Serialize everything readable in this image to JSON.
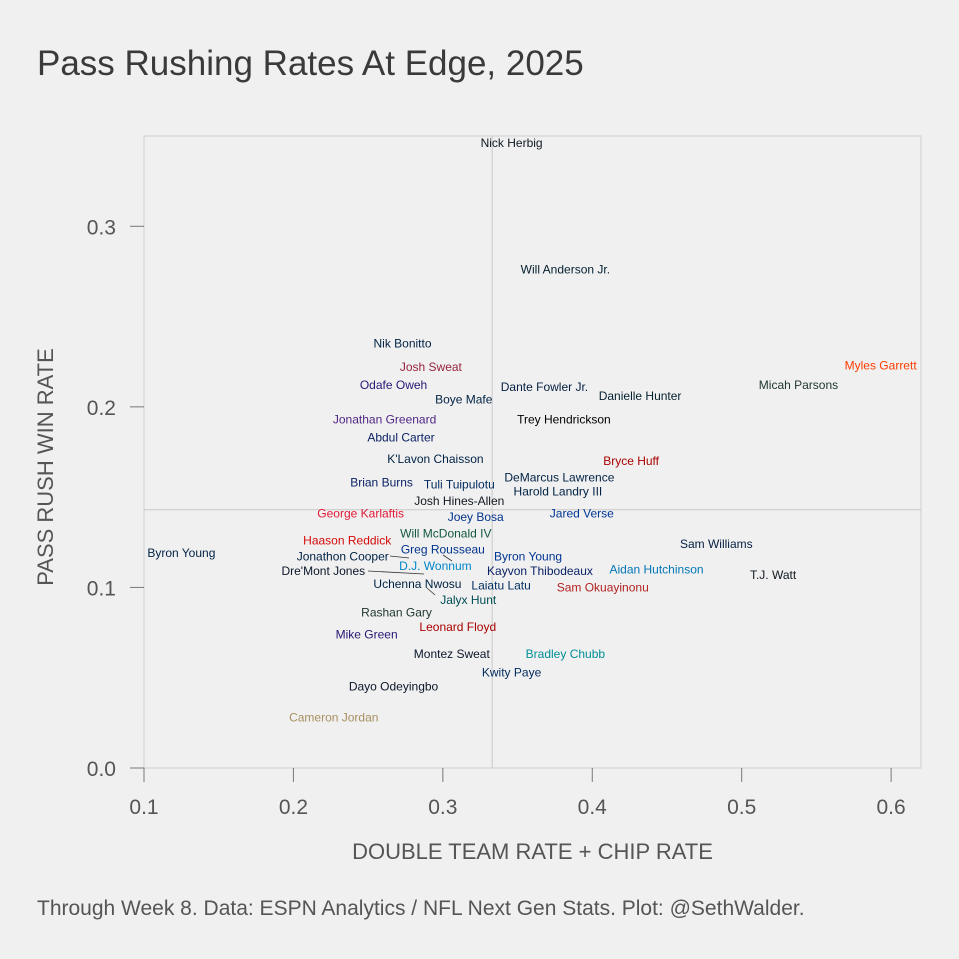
{
  "title": "Pass Rushing Rates At Edge, 2025",
  "caption": "Through Week 8. Data: ESPN Analytics / NFL Next Gen Stats. Plot: @SethWalder.",
  "chart_data": {
    "type": "scatter",
    "title": "Pass Rushing Rates At Edge, 2025",
    "xlabel": "DOUBLE TEAM RATE + CHIP RATE",
    "ylabel": "PASS RUSH WIN RATE",
    "xlim": [
      0.1,
      0.62
    ],
    "ylim": [
      0,
      0.35
    ],
    "xticks": [
      0.1,
      0.2,
      0.3,
      0.4,
      0.5,
      0.6
    ],
    "xtick_labels": [
      "0.1",
      "0.2",
      "0.3",
      "0.4",
      "0.5",
      "0.6"
    ],
    "yticks": [
      0,
      0.1,
      0.2,
      0.3
    ],
    "ytick_labels": [
      "0.0",
      "0.1",
      "0.2",
      "0.3"
    ],
    "reference_lines": {
      "x": 0.333,
      "y": 0.143
    },
    "grid": false,
    "points": [
      {
        "name": "Nick Herbig",
        "x": 0.346,
        "y": 0.346,
        "color": "#101820"
      },
      {
        "name": "Will Anderson Jr.",
        "x": 0.382,
        "y": 0.276,
        "color": "#03202f"
      },
      {
        "name": "Nik Bonitto",
        "x": 0.273,
        "y": 0.235,
        "color": "#002244"
      },
      {
        "name": "Josh Sweat",
        "x": 0.292,
        "y": 0.222,
        "color": "#97233f"
      },
      {
        "name": "Odafe Oweh",
        "x": 0.267,
        "y": 0.212,
        "color": "#241773"
      },
      {
        "name": "Boye Mafe",
        "x": 0.314,
        "y": 0.204,
        "color": "#002244"
      },
      {
        "name": "Jonathan Greenard",
        "x": 0.261,
        "y": 0.193,
        "color": "#4f2683"
      },
      {
        "name": "Abdul Carter",
        "x": 0.272,
        "y": 0.183,
        "color": "#0b2265"
      },
      {
        "name": "K'Lavon Chaisson",
        "x": 0.295,
        "y": 0.171,
        "color": "#002244"
      },
      {
        "name": "Brian Burns",
        "x": 0.259,
        "y": 0.158,
        "color": "#0b2265"
      },
      {
        "name": "Tuli Tuipulotu",
        "x": 0.311,
        "y": 0.157,
        "color": "#002a5e"
      },
      {
        "name": "Josh Hines-Allen",
        "x": 0.311,
        "y": 0.148,
        "color": "#101820"
      },
      {
        "name": "George Karlaftis",
        "x": 0.245,
        "y": 0.141,
        "color": "#e31837"
      },
      {
        "name": "Joey Bosa",
        "x": 0.322,
        "y": 0.139,
        "color": "#00338d"
      },
      {
        "name": "Will McDonald IV",
        "x": 0.302,
        "y": 0.13,
        "color": "#125740"
      },
      {
        "name": "Haason Reddick",
        "x": 0.236,
        "y": 0.126,
        "color": "#d50a0a"
      },
      {
        "name": "Jonathon Cooper",
        "x": 0.233,
        "y": 0.117,
        "color": "#002244"
      },
      {
        "name": "Greg Rousseau",
        "x": 0.3,
        "y": 0.121,
        "color": "#00338d"
      },
      {
        "name": "D.J. Wonnum",
        "x": 0.295,
        "y": 0.112,
        "color": "#0085ca"
      },
      {
        "name": "Dre'Mont Jones",
        "x": 0.22,
        "y": 0.109,
        "color": "#0b162a"
      },
      {
        "name": "Uchenna Nwosu",
        "x": 0.283,
        "y": 0.102,
        "color": "#002244"
      },
      {
        "name": "Jalyx Hunt",
        "x": 0.317,
        "y": 0.093,
        "color": "#004c54"
      },
      {
        "name": "Rashan Gary",
        "x": 0.269,
        "y": 0.086,
        "color": "#203731"
      },
      {
        "name": "Mike Green",
        "x": 0.249,
        "y": 0.074,
        "color": "#241773"
      },
      {
        "name": "Leonard Floyd",
        "x": 0.31,
        "y": 0.078,
        "color": "#aa0000"
      },
      {
        "name": "Montez Sweat",
        "x": 0.306,
        "y": 0.063,
        "color": "#0b162a"
      },
      {
        "name": "Bradley Chubb",
        "x": 0.382,
        "y": 0.063,
        "color": "#008e97"
      },
      {
        "name": "Kwity Paye",
        "x": 0.346,
        "y": 0.053,
        "color": "#002c5f"
      },
      {
        "name": "Dayo Odeyingbo",
        "x": 0.267,
        "y": 0.045,
        "color": "#0b162a"
      },
      {
        "name": "Cameron Jordan",
        "x": 0.227,
        "y": 0.028,
        "color": "#a89060"
      },
      {
        "name": "Dante Fowler Jr.",
        "x": 0.368,
        "y": 0.211,
        "color": "#041e42"
      },
      {
        "name": "Danielle Hunter",
        "x": 0.432,
        "y": 0.206,
        "color": "#03202f"
      },
      {
        "name": "Trey Hendrickson",
        "x": 0.381,
        "y": 0.193,
        "color": "#000000"
      },
      {
        "name": "Bryce Huff",
        "x": 0.426,
        "y": 0.17,
        "color": "#aa0000"
      },
      {
        "name": "DeMarcus Lawrence",
        "x": 0.378,
        "y": 0.161,
        "color": "#002244"
      },
      {
        "name": "Harold Landry III",
        "x": 0.377,
        "y": 0.153,
        "color": "#002244"
      },
      {
        "name": "Jared Verse",
        "x": 0.393,
        "y": 0.141,
        "color": "#003594"
      },
      {
        "name": "Byron Young",
        "x": 0.357,
        "y": 0.117,
        "color": "#003594"
      },
      {
        "name": "Kayvon Thibodeaux",
        "x": 0.365,
        "y": 0.109,
        "color": "#0b2265"
      },
      {
        "name": "Laiatu Latu",
        "x": 0.339,
        "y": 0.101,
        "color": "#002c5f"
      },
      {
        "name": "Sam Okuayinonu",
        "x": 0.407,
        "y": 0.1,
        "color": "#b22222"
      },
      {
        "name": "Aidan Hutchinson",
        "x": 0.443,
        "y": 0.11,
        "color": "#0076b6"
      },
      {
        "name": "Sam Williams",
        "x": 0.483,
        "y": 0.124,
        "color": "#041e42"
      },
      {
        "name": "T.J. Watt",
        "x": 0.521,
        "y": 0.107,
        "color": "#101820"
      },
      {
        "name": "Micah Parsons",
        "x": 0.538,
        "y": 0.212,
        "color": "#203731"
      },
      {
        "name": "Myles Garrett",
        "x": 0.593,
        "y": 0.223,
        "color": "#ff3c00"
      },
      {
        "name": "Byron Young",
        "x": 0.125,
        "y": 0.119,
        "color": "#002244"
      }
    ]
  }
}
